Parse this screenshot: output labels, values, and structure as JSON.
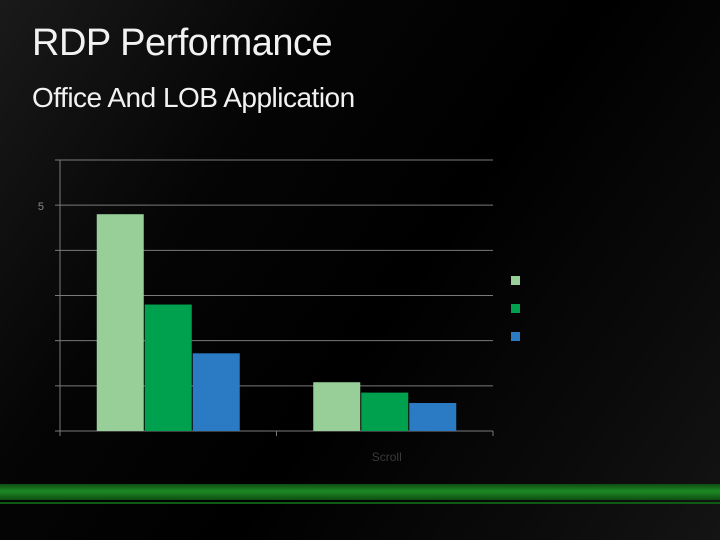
{
  "slide": {
    "title": "RDP Performance",
    "subtitle": "Office And LOB Application"
  },
  "chart_data": {
    "type": "bar",
    "categories": [
      "",
      ""
    ],
    "series": [
      {
        "color": "#98ce98",
        "values": [
          4.8,
          1.08
        ]
      },
      {
        "color": "#00a14e",
        "values": [
          2.8,
          0.85
        ]
      },
      {
        "color": "#2a7bc4",
        "values": [
          1.72,
          0.62
        ]
      }
    ],
    "ylim": [
      0,
      6
    ],
    "y_tick_labels": [
      {
        "value": 5,
        "label": "5"
      }
    ],
    "x_partial_label": "Scroll",
    "legend_position": "right",
    "grid": true
  }
}
